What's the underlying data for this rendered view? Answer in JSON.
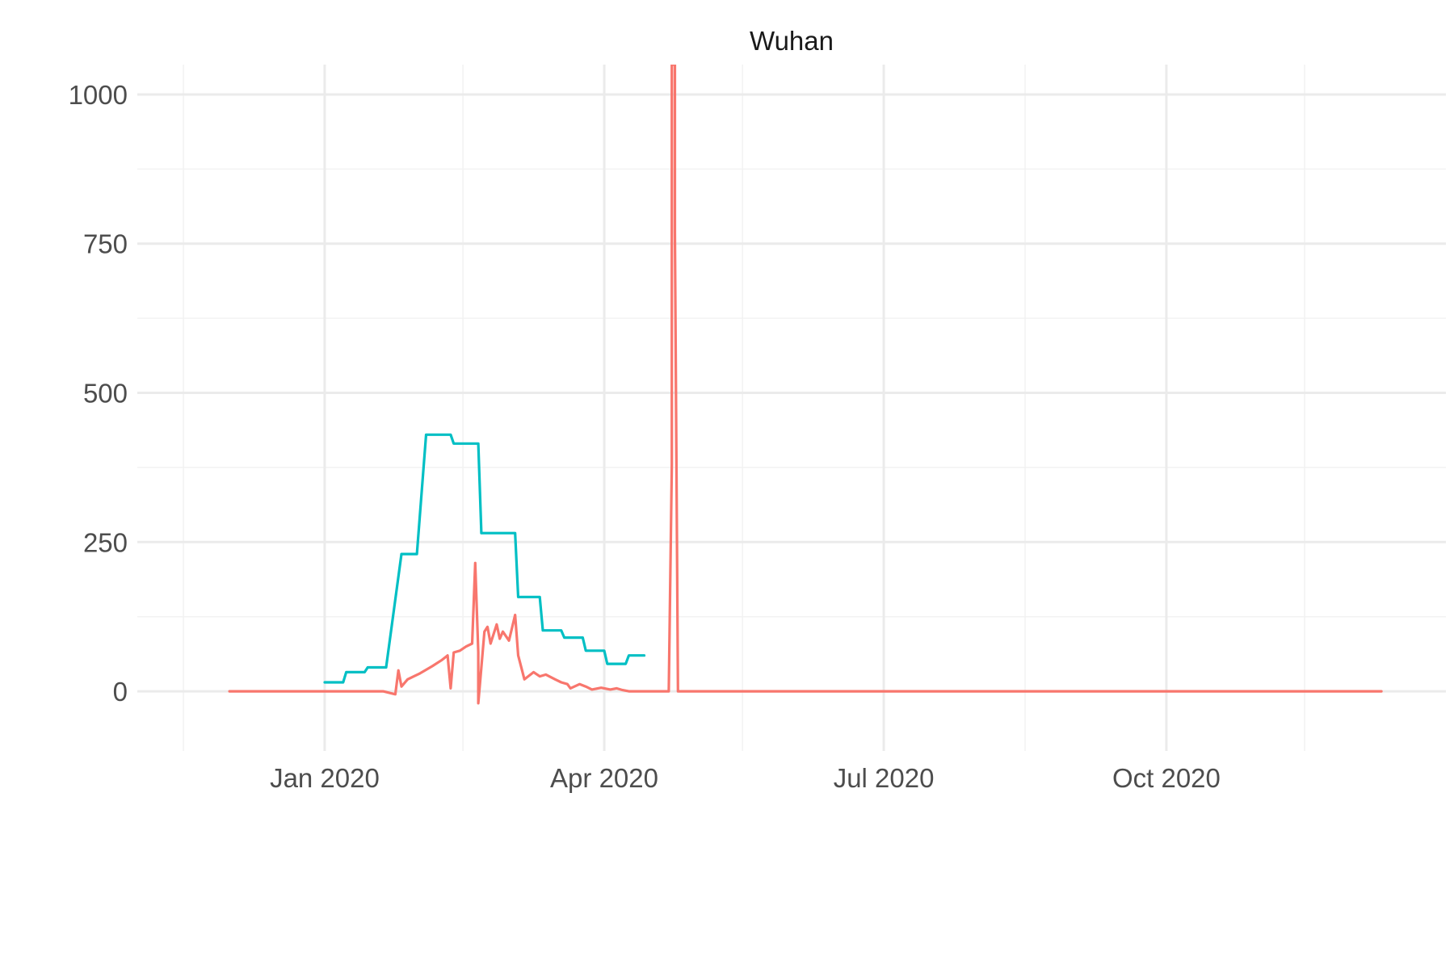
{
  "chart_data": {
    "type": "line",
    "title": "Wuhan",
    "xlabel": "",
    "ylabel": "",
    "xlim": [
      "2019-11-01",
      "2020-12-31"
    ],
    "ylim": [
      -100,
      1050
    ],
    "x_ticks": [
      {
        "date": "2020-01-01",
        "label": "Jan 2020"
      },
      {
        "date": "2020-04-01",
        "label": "Apr 2020"
      },
      {
        "date": "2020-07-01",
        "label": "Jul 2020"
      },
      {
        "date": "2020-10-01",
        "label": "Oct 2020"
      }
    ],
    "x_minor_ticks": [
      "2019-11-16",
      "2020-02-15",
      "2020-05-16",
      "2020-08-16",
      "2020-11-15"
    ],
    "y_ticks": [
      0,
      250,
      500,
      750,
      1000
    ],
    "y_minor_ticks": [
      125,
      375,
      625,
      875
    ],
    "grid": true,
    "legend": "none",
    "series": [
      {
        "color": "#00BFC4",
        "points": [
          [
            "2020-01-01",
            15
          ],
          [
            "2020-01-07",
            15
          ],
          [
            "2020-01-08",
            32
          ],
          [
            "2020-01-14",
            32
          ],
          [
            "2020-01-15",
            40
          ],
          [
            "2020-01-21",
            40
          ],
          [
            "2020-01-26",
            230
          ],
          [
            "2020-01-31",
            230
          ],
          [
            "2020-02-03",
            430
          ],
          [
            "2020-02-11",
            430
          ],
          [
            "2020-02-12",
            415
          ],
          [
            "2020-02-20",
            415
          ],
          [
            "2020-02-21",
            265
          ],
          [
            "2020-03-03",
            265
          ],
          [
            "2020-03-04",
            158
          ],
          [
            "2020-03-11",
            158
          ],
          [
            "2020-03-12",
            102
          ],
          [
            "2020-03-18",
            102
          ],
          [
            "2020-03-19",
            90
          ],
          [
            "2020-03-25",
            90
          ],
          [
            "2020-03-26",
            68
          ],
          [
            "2020-04-01",
            68
          ],
          [
            "2020-04-02",
            46
          ],
          [
            "2020-04-08",
            46
          ],
          [
            "2020-04-09",
            60
          ],
          [
            "2020-04-14",
            60
          ]
        ]
      },
      {
        "color": "#F8766D",
        "points": [
          [
            "2019-12-01",
            0
          ],
          [
            "2020-01-20",
            0
          ],
          [
            "2020-01-24",
            -5
          ],
          [
            "2020-01-25",
            35
          ],
          [
            "2020-01-26",
            8
          ],
          [
            "2020-01-28",
            20
          ],
          [
            "2020-01-30",
            25
          ],
          [
            "2020-02-01",
            30
          ],
          [
            "2020-02-05",
            42
          ],
          [
            "2020-02-08",
            52
          ],
          [
            "2020-02-10",
            60
          ],
          [
            "2020-02-11",
            5
          ],
          [
            "2020-02-12",
            65
          ],
          [
            "2020-02-14",
            68
          ],
          [
            "2020-02-16",
            75
          ],
          [
            "2020-02-18",
            80
          ],
          [
            "2020-02-19",
            215
          ],
          [
            "2020-02-20",
            65
          ],
          [
            "2020-02-20",
            -20
          ],
          [
            "2020-02-22",
            100
          ],
          [
            "2020-02-23",
            108
          ],
          [
            "2020-02-24",
            80
          ],
          [
            "2020-02-26",
            112
          ],
          [
            "2020-02-27",
            88
          ],
          [
            "2020-02-28",
            100
          ],
          [
            "2020-03-01",
            85
          ],
          [
            "2020-03-03",
            128
          ],
          [
            "2020-03-04",
            60
          ],
          [
            "2020-03-06",
            20
          ],
          [
            "2020-03-09",
            32
          ],
          [
            "2020-03-11",
            25
          ],
          [
            "2020-03-13",
            28
          ],
          [
            "2020-03-16",
            20
          ],
          [
            "2020-03-18",
            15
          ],
          [
            "2020-03-20",
            12
          ],
          [
            "2020-03-21",
            5
          ],
          [
            "2020-03-24",
            12
          ],
          [
            "2020-03-26",
            8
          ],
          [
            "2020-03-28",
            3
          ],
          [
            "2020-03-31",
            6
          ],
          [
            "2020-04-03",
            3
          ],
          [
            "2020-04-05",
            5
          ],
          [
            "2020-04-07",
            2
          ],
          [
            "2020-04-09",
            0
          ],
          [
            "2020-04-22",
            0
          ],
          [
            "2020-04-23",
            380
          ],
          [
            "2020-04-23",
            1050
          ],
          [
            "2020-04-24",
            1050
          ],
          [
            "2020-04-24",
            770
          ],
          [
            "2020-04-25",
            0
          ],
          [
            "2020-12-10",
            0
          ]
        ]
      }
    ]
  }
}
